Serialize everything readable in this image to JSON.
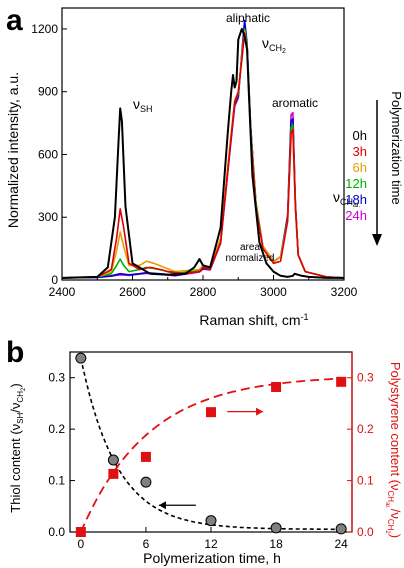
{
  "colors": {
    "t0h": "#000000",
    "t3h": "#e00000",
    "t6h": "#e0a000",
    "t12h": "#00b000",
    "t18h": "#0000c8",
    "t24h": "#d000d0",
    "thiol": "#808080",
    "polystyrene": "#e01010"
  },
  "chart_data": [
    {
      "type": "line",
      "panel_label": "a",
      "xlabel": "Raman shift, cm",
      "xlabel_sup": "-1",
      "ylabel": "Normalized intensity, a.u.",
      "xlim": [
        2400,
        3200
      ],
      "ylim": [
        0,
        1300
      ],
      "xticks": [
        "2400",
        "2600",
        "2800",
        "3000",
        "3200"
      ],
      "yticks": [
        "0",
        "300",
        "600",
        "900",
        "1200"
      ],
      "legend": {
        "placement": "right",
        "title": "Polymerization time",
        "entries": [
          "0h",
          "3h",
          "6h",
          "12h",
          "18h",
          "24h"
        ]
      },
      "annotations": {
        "nu_sh": "ν",
        "nu_sh_sub": "SH",
        "aliphatic": "aliphatic",
        "nu_ch2": "ν",
        "nu_ch2_sub": "CH",
        "nu_ch2_subsub": "2",
        "aromatic": "aromatic",
        "nu_char": "ν",
        "nu_char_sub": "CH",
        "nu_char_subsub": "ar.",
        "area_line1": "area",
        "area_line2": "normalized"
      },
      "series": [
        {
          "name": "0h",
          "x": [
            2400,
            2500,
            2530,
            2550,
            2560,
            2565,
            2570,
            2580,
            2600,
            2650,
            2700,
            2750,
            2775,
            2790,
            2800,
            2820,
            2850,
            2870,
            2880,
            2885,
            2890,
            2895,
            2900,
            2910,
            2915,
            2920,
            2925,
            2930,
            2940,
            2960,
            2980,
            3000,
            3020,
            3040,
            3055,
            3060,
            3070,
            3080,
            3100,
            3150,
            3200
          ],
          "y": [
            10,
            15,
            60,
            300,
            650,
            820,
            760,
            350,
            80,
            30,
            25,
            30,
            60,
            100,
            70,
            60,
            250,
            700,
            900,
            980,
            920,
            950,
            1150,
            1200,
            1180,
            1150,
            1100,
            900,
            500,
            180,
            80,
            40,
            20,
            15,
            20,
            30,
            25,
            20,
            15,
            10,
            10
          ]
        },
        {
          "name": "3h",
          "x": [
            2400,
            2500,
            2540,
            2555,
            2565,
            2575,
            2590,
            2620,
            2650,
            2680,
            2700,
            2750,
            2790,
            2800,
            2820,
            2850,
            2875,
            2890,
            2900,
            2910,
            2918,
            2925,
            2935,
            2950,
            2970,
            3000,
            3020,
            3040,
            3050,
            3055,
            3062,
            3070,
            3090,
            3150,
            3200
          ],
          "y": [
            10,
            15,
            50,
            200,
            340,
            250,
            80,
            50,
            60,
            50,
            40,
            30,
            40,
            60,
            50,
            180,
            600,
            850,
            900,
            1050,
            1180,
            1100,
            700,
            350,
            150,
            80,
            90,
            280,
            700,
            720,
            350,
            120,
            40,
            15,
            10
          ]
        },
        {
          "name": "6h",
          "x": [
            2400,
            2500,
            2540,
            2555,
            2565,
            2575,
            2590,
            2620,
            2640,
            2660,
            2690,
            2720,
            2790,
            2800,
            2820,
            2850,
            2875,
            2890,
            2900,
            2910,
            2918,
            2925,
            2935,
            2950,
            2970,
            3000,
            3020,
            3040,
            3050,
            3055,
            3062,
            3070,
            3090,
            3150,
            3200
          ],
          "y": [
            10,
            15,
            40,
            140,
            230,
            160,
            70,
            70,
            90,
            80,
            60,
            40,
            50,
            70,
            60,
            200,
            620,
            860,
            900,
            1060,
            1190,
            1110,
            720,
            360,
            160,
            90,
            110,
            280,
            700,
            710,
            340,
            120,
            40,
            15,
            10
          ]
        },
        {
          "name": "12h",
          "x": [
            2400,
            2500,
            2540,
            2555,
            2565,
            2575,
            2590,
            2620,
            2640,
            2660,
            2690,
            2720,
            2790,
            2800,
            2820,
            2850,
            2875,
            2890,
            2900,
            2910,
            2918,
            2925,
            2935,
            2950,
            2970,
            3000,
            3020,
            3040,
            3050,
            3055,
            3062,
            3070,
            3090,
            3150,
            3200
          ],
          "y": [
            10,
            15,
            30,
            70,
            100,
            70,
            40,
            50,
            60,
            55,
            45,
            30,
            45,
            60,
            55,
            190,
            610,
            850,
            890,
            1070,
            1200,
            1120,
            730,
            370,
            160,
            90,
            110,
            290,
            730,
            740,
            350,
            120,
            40,
            15,
            10
          ]
        },
        {
          "name": "18h",
          "x": [
            2400,
            2500,
            2540,
            2565,
            2590,
            2620,
            2640,
            2660,
            2690,
            2720,
            2790,
            2800,
            2820,
            2850,
            2875,
            2890,
            2900,
            2910,
            2918,
            2925,
            2935,
            2950,
            2970,
            3000,
            3020,
            3040,
            3050,
            3055,
            3062,
            3070,
            3090,
            3150,
            3200
          ],
          "y": [
            10,
            12,
            20,
            30,
            25,
            30,
            35,
            32,
            28,
            22,
            40,
            55,
            50,
            180,
            600,
            840,
            880,
            1080,
            1240,
            1130,
            740,
            370,
            160,
            90,
            110,
            300,
            760,
            770,
            360,
            120,
            40,
            15,
            10
          ]
        },
        {
          "name": "24h",
          "x": [
            2400,
            2500,
            2540,
            2565,
            2590,
            2620,
            2640,
            2660,
            2690,
            2720,
            2790,
            2800,
            2820,
            2850,
            2875,
            2890,
            2900,
            2910,
            2918,
            2925,
            2935,
            2950,
            2970,
            3000,
            3020,
            3040,
            3050,
            3055,
            3062,
            3070,
            3090,
            3150,
            3200
          ],
          "y": [
            10,
            12,
            18,
            25,
            22,
            28,
            32,
            30,
            26,
            20,
            38,
            52,
            48,
            175,
            590,
            830,
            870,
            1080,
            1230,
            1120,
            730,
            365,
            155,
            88,
            112,
            310,
            790,
            800,
            370,
            120,
            40,
            15,
            10
          ]
        }
      ]
    },
    {
      "type": "scatter",
      "panel_label": "b",
      "xlabel": "Polymerization time, h",
      "ylabel_left": "Thiol content (ν",
      "ylabel_left_sub1": "SH",
      "ylabel_left_mid": "/ν",
      "ylabel_left_sub2": "CH",
      "ylabel_left_sub2b": "2",
      "ylabel_left_end": ")",
      "ylabel_right": "Polystyrene content (ν",
      "ylabel_right_sub1": "CH",
      "ylabel_right_sub1b": "ar.",
      "ylabel_right_mid": "/ν",
      "ylabel_right_sub2": "CH",
      "ylabel_right_sub2b": "2",
      "ylabel_right_end": ")",
      "xlim": [
        -1,
        25
      ],
      "ylim_left": [
        0,
        0.35
      ],
      "ylim_right": [
        0,
        0.35
      ],
      "xticks": [
        "0",
        "6",
        "12",
        "18",
        "24"
      ],
      "yticks_left": [
        "0.0",
        "0.1",
        "0.2",
        "0.3"
      ],
      "yticks_right": [
        "0.0",
        "0.1",
        "0.2",
        "0.3"
      ],
      "series": [
        {
          "name": "Thiol content",
          "axis": "left",
          "marker": "circle",
          "x": [
            0,
            3,
            6,
            12,
            18,
            24
          ],
          "y": [
            0.338,
            0.14,
            0.097,
            0.022,
            0.008,
            0.006
          ]
        },
        {
          "name": "Polystyrene content",
          "axis": "right",
          "marker": "square",
          "x": [
            0,
            3,
            6,
            12,
            18,
            24
          ],
          "y": [
            0.0,
            0.113,
            0.146,
            0.233,
            0.282,
            0.292
          ]
        }
      ]
    }
  ]
}
